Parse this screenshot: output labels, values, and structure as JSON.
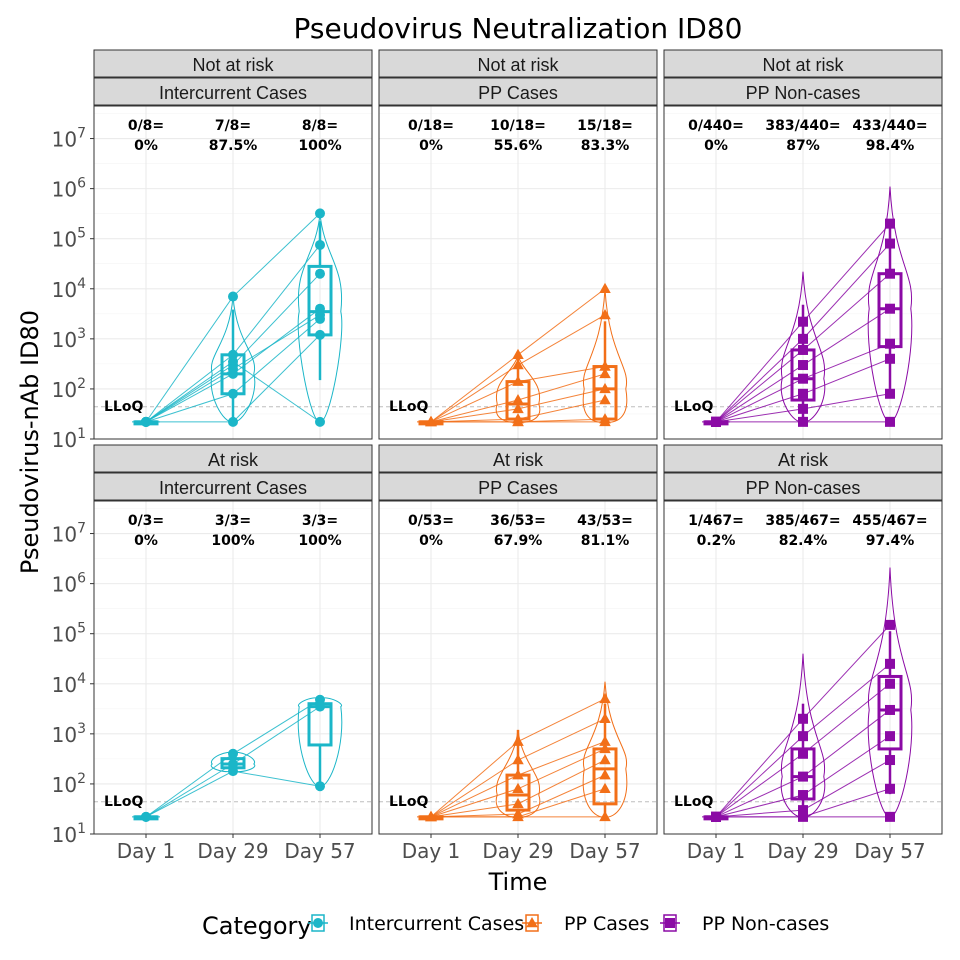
{
  "chart_data": {
    "type": "box-violin-line",
    "title": "Pseudovirus Neutralization ID80",
    "xlabel": "Time",
    "ylabel": "Pseudovirus-nAb ID80",
    "x_categories": [
      "Day 1",
      "Day 29",
      "Day 57"
    ],
    "y_scale": "log10",
    "ylim": [
      10,
      100000000
    ],
    "y_ticks": [
      10,
      100,
      1000,
      10000,
      100000,
      1000000,
      10000000
    ],
    "y_tick_exponents": [
      "1",
      "2",
      "3",
      "4",
      "5",
      "6",
      "7"
    ],
    "y_tick_base": "10",
    "lloq_label": "LLoQ",
    "lloq_value": 44,
    "legend": {
      "title": "Category",
      "placement": "bottom",
      "items": [
        {
          "label": "Intercurrent Cases",
          "color": "#1BB6C8",
          "shape": "circle"
        },
        {
          "label": "PP Cases",
          "color": "#F26F18",
          "shape": "triangle"
        },
        {
          "label": "PP Non-cases",
          "color": "#8B0AA5",
          "shape": "square"
        }
      ]
    },
    "panels": [
      {
        "row_label": "Not at risk",
        "col_label": "Intercurrent Cases",
        "category": "Intercurrent Cases",
        "response": [
          {
            "count": "0/8=",
            "pct": "0%"
          },
          {
            "count": "7/8=",
            "pct": "87.5%"
          },
          {
            "count": "8/8=",
            "pct": "100%"
          }
        ],
        "box": [
          {
            "q1": 22,
            "median": 22,
            "q3": 22,
            "min": 22,
            "max": 22
          },
          {
            "q1": 80,
            "median": 200,
            "q3": 480,
            "min": 22,
            "max": 7000
          },
          {
            "q1": 1200,
            "median": 3500,
            "q3": 28000,
            "min": 22,
            "max": 320000
          }
        ],
        "points": [
          [
            22,
            22,
            22,
            22,
            22,
            22,
            22,
            22
          ],
          [
            7000,
            480,
            300,
            200,
            80,
            22,
            350,
            250
          ],
          [
            320000,
            75000,
            20000,
            4000,
            2500,
            1200,
            22,
            3000
          ]
        ]
      },
      {
        "row_label": "Not at risk",
        "col_label": "PP Cases",
        "category": "PP Cases",
        "response": [
          {
            "count": "0/18=",
            "pct": "0%"
          },
          {
            "count": "10/18=",
            "pct": "55.6%"
          },
          {
            "count": "15/18=",
            "pct": "83.3%"
          }
        ],
        "box": [
          {
            "q1": 22,
            "median": 22,
            "q3": 22,
            "min": 22,
            "max": 22
          },
          {
            "q1": 25,
            "median": 50,
            "q3": 140,
            "min": 22,
            "max": 480
          },
          {
            "q1": 25,
            "median": 100,
            "q3": 280,
            "min": 22,
            "max": 10000
          }
        ],
        "points": [
          [
            22,
            22,
            22,
            22,
            22
          ],
          [
            480,
            300,
            140,
            60,
            40,
            25,
            22,
            22
          ],
          [
            10000,
            3000,
            280,
            200,
            100,
            60,
            25,
            22
          ]
        ]
      },
      {
        "row_label": "Not at risk",
        "col_label": "PP Non-cases",
        "category": "PP Non-cases",
        "response": [
          {
            "count": "0/440=",
            "pct": "0%"
          },
          {
            "count": "383/440=",
            "pct": "87%"
          },
          {
            "count": "433/440=",
            "pct": "98.4%"
          }
        ],
        "box": [
          {
            "q1": 22,
            "median": 22,
            "q3": 22,
            "min": 22,
            "max": 22
          },
          {
            "q1": 60,
            "median": 160,
            "q3": 600,
            "min": 22,
            "max": 22000
          },
          {
            "q1": 700,
            "median": 4000,
            "q3": 20000,
            "min": 22,
            "max": 1100000
          }
        ],
        "points": [
          [
            22,
            22,
            22,
            22,
            22
          ],
          [
            2200,
            1000,
            600,
            300,
            160,
            80,
            40,
            22
          ],
          [
            200000,
            80000,
            20000,
            4000,
            800,
            400,
            80,
            22
          ]
        ]
      },
      {
        "row_label": "At risk",
        "col_label": "Intercurrent Cases",
        "category": "Intercurrent Cases",
        "response": [
          {
            "count": "0/3=",
            "pct": "0%"
          },
          {
            "count": "3/3=",
            "pct": "100%"
          },
          {
            "count": "3/3=",
            "pct": "100%"
          }
        ],
        "box": [
          {
            "q1": 22,
            "median": 22,
            "q3": 22,
            "min": 22,
            "max": 22
          },
          {
            "q1": 210,
            "median": 250,
            "q3": 320,
            "min": 180,
            "max": 400
          },
          {
            "q1": 600,
            "median": 3500,
            "q3": 4000,
            "min": 90,
            "max": 4800
          }
        ],
        "points": [
          [
            22,
            22,
            22
          ],
          [
            400,
            250,
            180
          ],
          [
            4800,
            3500,
            90
          ]
        ]
      },
      {
        "row_label": "At risk",
        "col_label": "PP Cases",
        "category": "PP Cases",
        "response": [
          {
            "count": "0/53=",
            "pct": "0%"
          },
          {
            "count": "36/53=",
            "pct": "67.9%"
          },
          {
            "count": "43/53=",
            "pct": "81.1%"
          }
        ],
        "box": [
          {
            "q1": 22,
            "median": 22,
            "q3": 22,
            "min": 22,
            "max": 22
          },
          {
            "q1": 30,
            "median": 60,
            "q3": 150,
            "min": 22,
            "max": 1200
          },
          {
            "q1": 40,
            "median": 200,
            "q3": 500,
            "min": 22,
            "max": 11000
          }
        ],
        "points": [
          [
            22,
            22,
            22,
            22,
            22
          ],
          [
            700,
            300,
            150,
            80,
            40,
            25,
            22
          ],
          [
            5000,
            2000,
            700,
            500,
            300,
            150,
            80,
            22
          ]
        ]
      },
      {
        "row_label": "At risk",
        "col_label": "PP Non-cases",
        "category": "PP Non-cases",
        "response": [
          {
            "count": "1/467=",
            "pct": "0.2%"
          },
          {
            "count": "385/467=",
            "pct": "82.4%"
          },
          {
            "count": "455/467=",
            "pct": "97.4%"
          }
        ],
        "box": [
          {
            "q1": 22,
            "median": 22,
            "q3": 22,
            "min": 22,
            "max": 22
          },
          {
            "q1": 50,
            "median": 140,
            "q3": 500,
            "min": 22,
            "max": 40000
          },
          {
            "q1": 500,
            "median": 3000,
            "q3": 14000,
            "min": 22,
            "max": 2100000
          }
        ],
        "points": [
          [
            22,
            22,
            22,
            22,
            22
          ],
          [
            2000,
            900,
            400,
            140,
            60,
            30,
            22
          ],
          [
            150000,
            25000,
            10000,
            3000,
            900,
            300,
            80,
            22
          ]
        ]
      }
    ]
  }
}
